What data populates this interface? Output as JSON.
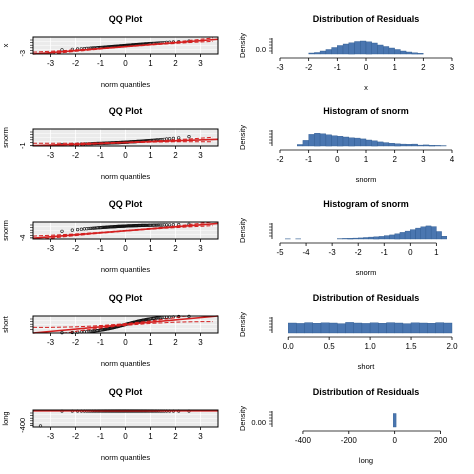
{
  "colors": {
    "bar_fill": "#4a76b0",
    "bar_stroke": "#2e5a90",
    "qq_line": "#d42020",
    "qq_points": "#111111",
    "panel_bg": "#ebebeb",
    "grid": "#ffffff"
  },
  "chart_data": [
    {
      "type": "scatter",
      "title": "QQ Plot",
      "xlabel": "norm quantiles",
      "ylabel": "x",
      "xlim": [
        -3.7,
        3.7
      ],
      "ylim": [
        -3.2,
        1.2
      ],
      "xticks": [
        -3,
        -2,
        -1,
        0,
        1,
        2,
        3
      ],
      "yticks": [
        -3
      ],
      "grid": true,
      "points_shape": "s-curve",
      "ref_line": [
        -3.2,
        0.62
      ],
      "point_spread": 0.2
    },
    {
      "type": "bar",
      "title": "Distribution of Residuals",
      "xlabel": "x",
      "ylabel": "Density",
      "ytick_label": "0.0",
      "xlim": [
        -3,
        3
      ],
      "xticks": [
        -3,
        -2,
        -1,
        0,
        1,
        2,
        3
      ],
      "bins": [
        -2.0,
        -1.8,
        -1.6,
        -1.4,
        -1.2,
        -1.0,
        -0.8,
        -0.6,
        -0.4,
        -0.2,
        0.0,
        0.2,
        0.4,
        0.6,
        0.8,
        1.0,
        1.2,
        1.4,
        1.6,
        1.8
      ],
      "bin_width": 0.2,
      "values": [
        0.04,
        0.06,
        0.12,
        0.18,
        0.26,
        0.34,
        0.4,
        0.45,
        0.5,
        0.52,
        0.49,
        0.44,
        0.36,
        0.3,
        0.24,
        0.18,
        0.12,
        0.08,
        0.05,
        0.03
      ],
      "ymax": 0.6
    },
    {
      "type": "scatter",
      "title": "QQ Plot",
      "xlabel": "norm quantiles",
      "ylabel": "snorm",
      "xlim": [
        -3.7,
        3.7
      ],
      "ylim": [
        -1.1,
        4.0
      ],
      "xticks": [
        -3,
        -2,
        -1,
        0,
        1,
        2,
        3
      ],
      "yticks": [
        -1
      ],
      "grid": true,
      "points_shape": "right-skew",
      "ref_line": [
        -1.0,
        0.9
      ],
      "point_spread": 0.3
    },
    {
      "type": "bar",
      "title": "Histogram of snorm",
      "xlabel": "snorm",
      "ylabel": "Density",
      "xlim": [
        -2,
        4
      ],
      "xticks": [
        -2,
        -1,
        0,
        1,
        2,
        3,
        4
      ],
      "bins": [
        -1.4,
        -1.2,
        -1.0,
        -0.8,
        -0.6,
        -0.4,
        -0.2,
        0.0,
        0.2,
        0.4,
        0.6,
        0.8,
        1.0,
        1.2,
        1.4,
        1.6,
        1.8,
        2.0,
        2.2,
        2.4,
        2.6,
        2.8,
        3.0,
        3.2,
        3.4,
        3.6
      ],
      "bin_width": 0.2,
      "values": [
        0.08,
        0.3,
        0.62,
        0.68,
        0.65,
        0.6,
        0.55,
        0.52,
        0.48,
        0.44,
        0.42,
        0.38,
        0.32,
        0.28,
        0.22,
        0.18,
        0.15,
        0.12,
        0.1,
        0.09,
        0.1,
        0.05,
        0.06,
        0.04,
        0.03,
        0.02
      ],
      "ymax": 0.8
    },
    {
      "type": "scatter",
      "title": "QQ Plot",
      "xlabel": "norm quantiles",
      "ylabel": "snorm",
      "xlim": [
        -3.7,
        3.7
      ],
      "ylim": [
        -4.4,
        1.6
      ],
      "xticks": [
        -3,
        -2,
        -1,
        0,
        1,
        2,
        3
      ],
      "yticks": [
        -4
      ],
      "grid": true,
      "points_shape": "left-skew",
      "ref_line": [
        -4.1,
        1.1
      ],
      "point_spread": 0.3
    },
    {
      "type": "bar",
      "title": "Histogram of snorm",
      "xlabel": "snorm",
      "ylabel": "Density",
      "xlim": [
        -5,
        1.6
      ],
      "xticks": [
        -5,
        -4,
        -3,
        -2,
        -1,
        0,
        1
      ],
      "bins": [
        -4.8,
        -4.4,
        -2.8,
        -2.6,
        -2.4,
        -2.2,
        -2.0,
        -1.8,
        -1.6,
        -1.4,
        -1.2,
        -1.0,
        -0.8,
        -0.6,
        -0.4,
        -0.2,
        0.0,
        0.2,
        0.4,
        0.6,
        0.8,
        1.0,
        1.2
      ],
      "bin_width": 0.2,
      "values": [
        0.01,
        0.01,
        0.02,
        0.03,
        0.04,
        0.05,
        0.06,
        0.08,
        0.1,
        0.12,
        0.14,
        0.18,
        0.22,
        0.28,
        0.35,
        0.42,
        0.5,
        0.58,
        0.65,
        0.7,
        0.66,
        0.4,
        0.15
      ],
      "ymax": 0.8
    },
    {
      "type": "scatter",
      "title": "QQ Plot",
      "xlabel": "norm quantiles",
      "ylabel": "short",
      "xlim": [
        -3.7,
        3.7
      ],
      "ylim": [
        -0.1,
        2.1
      ],
      "xticks": [
        -3,
        -2,
        -1,
        0,
        1,
        2,
        3
      ],
      "yticks": [],
      "grid": true,
      "points_shape": "uniform",
      "ref_line": [
        -0.1,
        2.1
      ],
      "point_spread": 0.3
    },
    {
      "type": "bar",
      "title": "Distribution of Residuals",
      "xlabel": "short",
      "ylabel": "Density",
      "xlim": [
        -0.1,
        2.0
      ],
      "xticks": [
        0.0,
        0.5,
        1.0,
        1.5,
        2.0
      ],
      "xtick_labels": [
        "0.0",
        "0.5",
        "1.0",
        "1.5",
        "2.0"
      ],
      "bins": [
        0.0,
        0.1,
        0.2,
        0.3,
        0.4,
        0.5,
        0.6,
        0.7,
        0.8,
        0.9,
        1.0,
        1.1,
        1.2,
        1.3,
        1.4,
        1.5,
        1.6,
        1.7,
        1.8,
        1.9
      ],
      "bin_width": 0.1,
      "values": [
        0.5,
        0.48,
        0.52,
        0.49,
        0.51,
        0.5,
        0.47,
        0.53,
        0.5,
        0.48,
        0.51,
        0.49,
        0.52,
        0.5,
        0.47,
        0.51,
        0.5,
        0.49,
        0.52,
        0.5
      ],
      "ymax": 0.75
    },
    {
      "type": "scatter",
      "title": "QQ Plot",
      "xlabel": "norm quantiles",
      "ylabel": "long",
      "xlim": [
        -3.7,
        3.7
      ],
      "ylim": [
        -450,
        50
      ],
      "xticks": [
        -3,
        -2,
        -1,
        0,
        1,
        2,
        3
      ],
      "yticks": [
        -400
      ],
      "grid": true,
      "points_shape": "flat",
      "ref_line": [
        -2,
        2
      ],
      "point_spread": 0,
      "outlier": -420
    },
    {
      "type": "bar",
      "title": "Distribution of Residuals",
      "xlabel": "long",
      "ylabel": "Density",
      "ytick_label": "0.00",
      "xlim": [
        -500,
        250
      ],
      "xticks": [
        -400,
        -200,
        0,
        200
      ],
      "bins": [
        -6
      ],
      "bin_width": 12,
      "values": [
        0.9
      ],
      "ymax": 1.0
    }
  ]
}
